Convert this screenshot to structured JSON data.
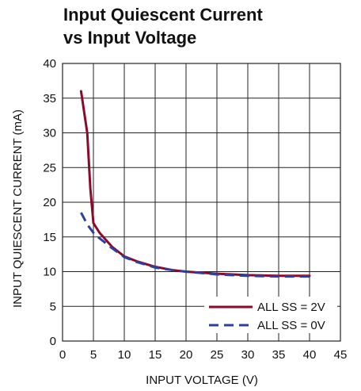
{
  "chart_data": {
    "type": "line",
    "title_lines": [
      "Input Quiescent Current",
      "vs Input Voltage"
    ],
    "xlabel": "INPUT VOLTAGE (V)",
    "ylabel": "INPUT QUIESCENT CURRENT (mA)",
    "xlim": [
      0,
      45
    ],
    "ylim": [
      0,
      40
    ],
    "xticks": [
      0,
      5,
      10,
      15,
      20,
      25,
      30,
      35,
      40,
      45
    ],
    "yticks": [
      0,
      5,
      10,
      15,
      20,
      25,
      30,
      35,
      40
    ],
    "grid": true,
    "legend_position": "bottom-right",
    "series": [
      {
        "name": "ALL SS = 2V",
        "color": "#8b0a2c",
        "dash": "solid",
        "x": [
          3,
          4,
          4.5,
          5,
          6,
          8,
          10,
          12,
          15,
          18,
          20,
          25,
          30,
          35,
          40
        ],
        "y": [
          36,
          30,
          22,
          17,
          15.6,
          13.6,
          12.2,
          11.5,
          10.7,
          10.2,
          10.0,
          9.7,
          9.5,
          9.4,
          9.4
        ]
      },
      {
        "name": "ALL SS = 0V",
        "color": "#2e3f9e",
        "dash": "dashed",
        "x": [
          3,
          4,
          5,
          6,
          8,
          10,
          12,
          15,
          18,
          20,
          25,
          30,
          35,
          40
        ],
        "y": [
          18.5,
          16.8,
          15.6,
          14.8,
          13.4,
          12.1,
          11.4,
          10.6,
          10.2,
          10.0,
          9.6,
          9.4,
          9.3,
          9.3
        ]
      }
    ]
  }
}
